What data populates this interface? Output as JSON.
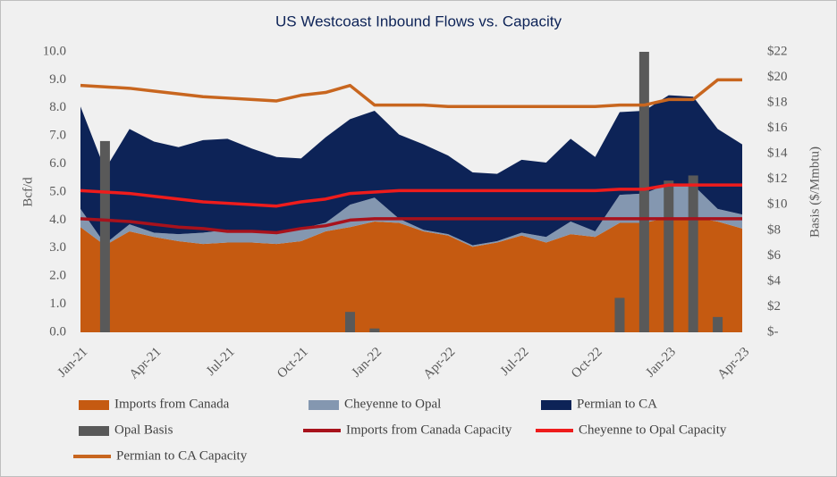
{
  "chart_data": {
    "type": "combo",
    "title": "US Westcoast Inbound Flows vs. Capacity",
    "ylabel": "Bcf/d",
    "y2label": "Basis ($/Mmbtu)",
    "grid": false,
    "categories": [
      "Jan-21",
      null,
      null,
      "Apr-21",
      null,
      null,
      "Jul-21",
      null,
      null,
      "Oct-21",
      null,
      null,
      "Jan-22",
      null,
      null,
      "Apr-22",
      null,
      null,
      "Jul-22",
      null,
      null,
      "Oct-22",
      null,
      null,
      "Jan-23",
      null,
      null,
      "Apr-23"
    ],
    "ylim": [
      0,
      10
    ],
    "yticks": [
      {
        "value": 0,
        "label": "0.0"
      },
      {
        "value": 1,
        "label": "1.0"
      },
      {
        "value": 2,
        "label": "2.0"
      },
      {
        "value": 3,
        "label": "3.0"
      },
      {
        "value": 4,
        "label": "4.0"
      },
      {
        "value": 5,
        "label": "5.0"
      },
      {
        "value": 6,
        "label": "6.0"
      },
      {
        "value": 7,
        "label": "7.0"
      },
      {
        "value": 8,
        "label": "8.0"
      },
      {
        "value": 9,
        "label": "9.0"
      },
      {
        "value": 10,
        "label": "10.0"
      }
    ],
    "y2lim": [
      0,
      22
    ],
    "y2ticks": [
      {
        "value": 0,
        "label": "$-"
      },
      {
        "value": 2,
        "label": "$2"
      },
      {
        "value": 4,
        "label": "$4"
      },
      {
        "value": 6,
        "label": "$6"
      },
      {
        "value": 8,
        "label": "$8"
      },
      {
        "value": 10,
        "label": "$10"
      },
      {
        "value": 12,
        "label": "$12"
      },
      {
        "value": 14,
        "label": "$14"
      },
      {
        "value": 16,
        "label": "$16"
      },
      {
        "value": 18,
        "label": "$18"
      },
      {
        "value": 20,
        "label": "$20"
      },
      {
        "value": 22,
        "label": "$22"
      }
    ],
    "series": [
      {
        "name": "Imports from Canada",
        "type": "area",
        "color": "#c55a11",
        "values": [
          3.75,
          3.1,
          3.6,
          3.4,
          3.25,
          3.15,
          3.2,
          3.2,
          3.15,
          3.25,
          3.6,
          3.75,
          3.95,
          3.9,
          3.6,
          3.45,
          3.05,
          3.2,
          3.45,
          3.2,
          3.5,
          3.4,
          3.9,
          3.9,
          4.1,
          4.1,
          3.95,
          3.7
        ]
      },
      {
        "name": "Cheyenne to Opal",
        "type": "area",
        "color": "#8497b0",
        "values": [
          0.65,
          0.05,
          0.25,
          0.15,
          0.25,
          0.4,
          0.45,
          0.4,
          0.35,
          0.45,
          0.3,
          0.8,
          0.85,
          0.15,
          0.05,
          0.05,
          0.05,
          0.05,
          0.1,
          0.2,
          0.45,
          0.2,
          1.0,
          1.05,
          1.2,
          1.15,
          0.45,
          0.5
        ]
      },
      {
        "name": "Permian to CA",
        "type": "area",
        "color": "#0d2357",
        "values": [
          3.65,
          2.65,
          3.4,
          3.25,
          3.1,
          3.3,
          3.25,
          2.95,
          2.75,
          2.5,
          3.05,
          3.05,
          3.1,
          3.0,
          3.05,
          2.8,
          2.6,
          2.4,
          2.6,
          2.65,
          2.95,
          2.65,
          2.95,
          2.95,
          3.15,
          3.15,
          2.85,
          2.5
        ]
      },
      {
        "name": "Opal Basis",
        "type": "bar",
        "axis": "y2",
        "color": "#595959",
        "values": [
          null,
          15,
          null,
          null,
          null,
          null,
          null,
          null,
          null,
          null,
          null,
          1.6,
          0.3,
          null,
          null,
          null,
          null,
          null,
          null,
          null,
          null,
          null,
          2.7,
          22,
          11.9,
          12.3,
          1.2,
          null
        ]
      },
      {
        "name": "Imports from Canada Capacity",
        "type": "line",
        "color": "#a8121c",
        "values": [
          4.05,
          4.0,
          3.95,
          3.85,
          3.75,
          3.7,
          3.6,
          3.6,
          3.55,
          3.7,
          3.8,
          4.0,
          4.05,
          4.05,
          4.05,
          4.05,
          4.05,
          4.05,
          4.05,
          4.05,
          4.05,
          4.05,
          4.05,
          4.05,
          4.05,
          4.05,
          4.05,
          4.05
        ]
      },
      {
        "name": "Cheyenne to Opal Capacity",
        "type": "line",
        "color": "#ee1c1c",
        "values": [
          5.05,
          5.0,
          4.95,
          4.85,
          4.75,
          4.65,
          4.6,
          4.55,
          4.5,
          4.65,
          4.75,
          4.95,
          5.0,
          5.05,
          5.05,
          5.05,
          5.05,
          5.05,
          5.05,
          5.05,
          5.05,
          5.05,
          5.1,
          5.1,
          5.25,
          5.25,
          5.25,
          5.25
        ]
      },
      {
        "name": "Permian to CA Capacity",
        "type": "line",
        "color": "#c8661f",
        "values": [
          8.8,
          8.75,
          8.7,
          8.6,
          8.5,
          8.4,
          8.35,
          8.3,
          8.25,
          8.45,
          8.55,
          8.8,
          8.1,
          8.1,
          8.1,
          8.05,
          8.05,
          8.05,
          8.05,
          8.05,
          8.05,
          8.05,
          8.1,
          8.1,
          8.3,
          8.3,
          9.0,
          9.0
        ]
      }
    ]
  }
}
